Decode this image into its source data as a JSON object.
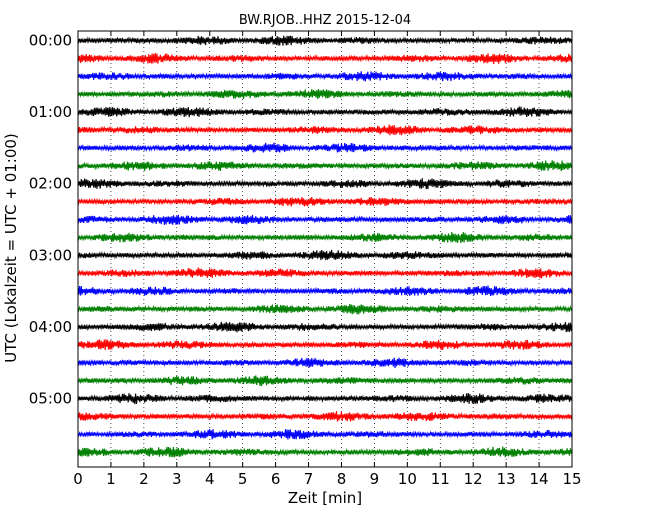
{
  "chart_data": {
    "type": "line",
    "title": "BW.RJOB..HHZ 2015-12-04",
    "xlabel": "Zeit  [min]",
    "ylabel": "UTC (Lokalzeit = UTC + 01:00)",
    "xlim": [
      0,
      15
    ],
    "x_ticks": [
      0,
      1,
      2,
      3,
      4,
      5,
      6,
      7,
      8,
      9,
      10,
      11,
      12,
      13,
      14,
      15
    ],
    "y_tick_labels": [
      "00:00",
      "01:00",
      "02:00",
      "03:00",
      "04:00",
      "05:00"
    ],
    "traces_per_hour": 4,
    "trace_count": 24,
    "trace_interval_minutes": 15,
    "trace_colors": [
      "#000000",
      "#ff0000",
      "#0000ff",
      "#008000"
    ],
    "grid": {
      "vertical": "dotted",
      "horizontal": false
    }
  }
}
